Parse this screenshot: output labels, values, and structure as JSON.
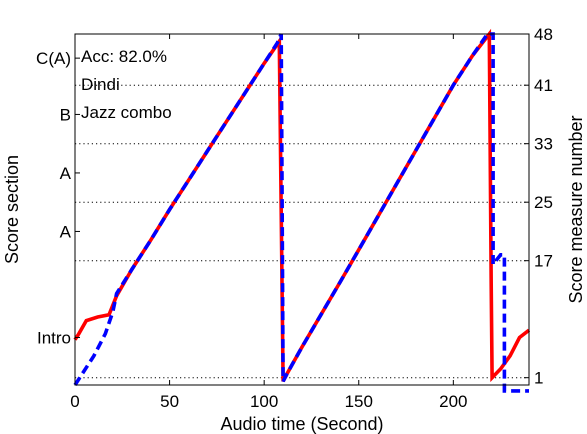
{
  "chart_data": {
    "type": "line",
    "xlabel": "Audio time (Second)",
    "ylabel_left": "Score section",
    "ylabel_right": "Score measure number",
    "xlim": [
      0,
      240
    ],
    "ylim": [
      0,
      48
    ],
    "x_ticks": [
      0,
      50,
      100,
      150,
      200
    ],
    "right_ticks": [
      1,
      17,
      25,
      33,
      41,
      48
    ],
    "section_labels": [
      {
        "label": "Intro",
        "y": 6.5
      },
      {
        "label": "A",
        "y": 21
      },
      {
        "label": "A",
        "y": 29
      },
      {
        "label": "B",
        "y": 37
      },
      {
        "label": "C(A)",
        "y": 44.7
      }
    ],
    "gridlines_y": [
      1,
      17,
      25,
      33,
      41
    ],
    "annotations": [
      "Acc: 82.0%",
      "Dindi",
      "Jazz combo"
    ],
    "series": [
      {
        "color": "#ff0000",
        "style": "solid",
        "points": [
          [
            0,
            6.2
          ],
          [
            2,
            7.0
          ],
          [
            6,
            8.8
          ],
          [
            12,
            9.3
          ],
          [
            18,
            9.6
          ],
          [
            22,
            12.2
          ],
          [
            30,
            15.8
          ],
          [
            40,
            19.8
          ],
          [
            50,
            24.0
          ],
          [
            60,
            28.0
          ],
          [
            70,
            32.0
          ],
          [
            80,
            36.0
          ],
          [
            90,
            40.0
          ],
          [
            100,
            44.0
          ],
          [
            108,
            47.0
          ],
          [
            110,
            0.5
          ],
          [
            110,
            0.5
          ],
          [
            112,
            1.5
          ],
          [
            120,
            5.2
          ],
          [
            130,
            9.6
          ],
          [
            140,
            14.0
          ],
          [
            150,
            18.5
          ],
          [
            160,
            23.0
          ],
          [
            170,
            27.5
          ],
          [
            180,
            32.0
          ],
          [
            190,
            36.5
          ],
          [
            200,
            41.0
          ],
          [
            210,
            45.0
          ],
          [
            219,
            48.0
          ],
          [
            220,
            13.8
          ],
          [
            220.5,
            1.0
          ],
          [
            225,
            2.2
          ],
          [
            230,
            4.0
          ],
          [
            235,
            6.5
          ],
          [
            240,
            7.5
          ]
        ]
      },
      {
        "color": "#0000ff",
        "style": "dashed",
        "points": [
          [
            0,
            0
          ],
          [
            4,
            1.6
          ],
          [
            10,
            4.0
          ],
          [
            16,
            7.0
          ],
          [
            20,
            10.0
          ],
          [
            22,
            12.5
          ],
          [
            30,
            15.8
          ],
          [
            40,
            19.8
          ],
          [
            50,
            24.0
          ],
          [
            60,
            28.0
          ],
          [
            70,
            32.0
          ],
          [
            80,
            36.0
          ],
          [
            90,
            40.0
          ],
          [
            100,
            44.0
          ],
          [
            107,
            46.8
          ],
          [
            109,
            48.0
          ],
          [
            110,
            0.5
          ],
          [
            112,
            1.5
          ],
          [
            120,
            5.2
          ],
          [
            130,
            9.6
          ],
          [
            140,
            14.0
          ],
          [
            150,
            18.5
          ],
          [
            160,
            23.0
          ],
          [
            170,
            27.5
          ],
          [
            180,
            32.0
          ],
          [
            190,
            36.5
          ],
          [
            200,
            41.0
          ],
          [
            210,
            45.0
          ],
          [
            218,
            48.0
          ],
          [
            221,
            48.0
          ],
          [
            221,
            16.5
          ],
          [
            225,
            17.8
          ],
          [
            227,
            17.8
          ],
          [
            227,
            -0.8
          ],
          [
            240,
            -0.8
          ]
        ]
      }
    ]
  }
}
